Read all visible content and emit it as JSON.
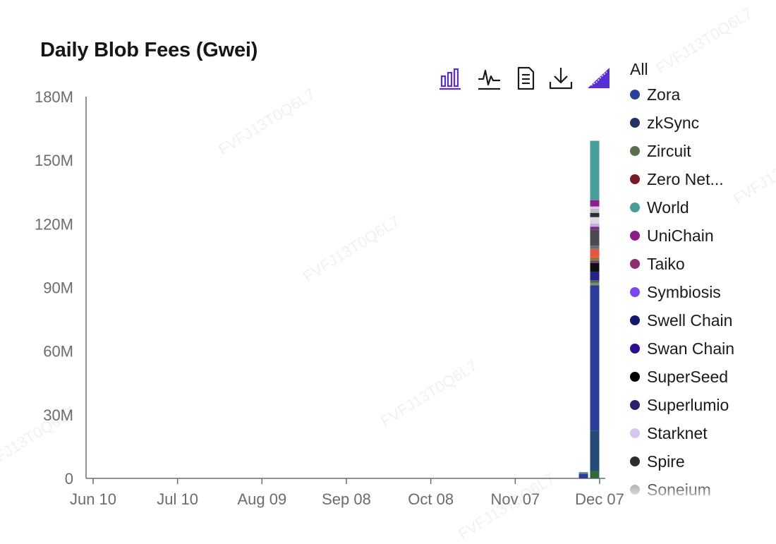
{
  "chart_data": {
    "type": "bar",
    "stacked": true,
    "title": "Daily Blob Fees (Gwei)",
    "ylim": [
      0,
      180000000
    ],
    "y_ticks": [
      "0",
      "30M",
      "60M",
      "90M",
      "120M",
      "150M",
      "180M"
    ],
    "x_range": [
      "Jun 10",
      "Dec 07"
    ],
    "x_ticks": [
      "Jun 10",
      "Jul 10",
      "Aug 09",
      "Sep 08",
      "Oct 08",
      "Nov 07",
      "Dec 07"
    ],
    "grid": false,
    "legend_position": "right",
    "bars": [
      {
        "date": "Dec 03",
        "segments": [
          {
            "value": 2000000,
            "color": "#2a3f9b"
          },
          {
            "value": 600000,
            "color": "#3e7f7a"
          },
          {
            "value": 400000,
            "color": "#8a8aa0"
          }
        ]
      },
      {
        "date": "Dec 07",
        "segments": [
          {
            "value": 3500000,
            "color": "#2f6b3a"
          },
          {
            "value": 19000000,
            "color": "#244b73"
          },
          {
            "value": 68500000,
            "color": "#2a3f9b"
          },
          {
            "value": 1200000,
            "color": "#8a8a6a"
          },
          {
            "value": 1300000,
            "color": "#4a6a52"
          },
          {
            "value": 4000000,
            "color": "#25238a"
          },
          {
            "value": 4000000,
            "color": "#0e0e14"
          },
          {
            "value": 1200000,
            "color": "#6a3a6a"
          },
          {
            "value": 1500000,
            "color": "#8a7a40"
          },
          {
            "value": 4000000,
            "color": "#e8553f"
          },
          {
            "value": 1500000,
            "color": "#6c6c75"
          },
          {
            "value": 7500000,
            "color": "#4a4a4f"
          },
          {
            "value": 1500000,
            "color": "#7a2a8a"
          },
          {
            "value": 1500000,
            "color": "#c9a8e0"
          },
          {
            "value": 3000000,
            "color": "#d9d9dd"
          },
          {
            "value": 2000000,
            "color": "#2b2d33"
          },
          {
            "value": 2000000,
            "color": "#bcbcc2"
          },
          {
            "value": 1000000,
            "color": "#d7c6f0"
          },
          {
            "value": 3000000,
            "color": "#8e1d8c"
          },
          {
            "value": 28000000,
            "color": "#4a9e9a"
          }
        ]
      }
    ]
  },
  "legend": {
    "all_label": "All",
    "items": [
      {
        "label": "Zora",
        "color": "#2a3f9b"
      },
      {
        "label": "zkSync",
        "color": "#233266"
      },
      {
        "label": "Zircuit",
        "color": "#5b6e4e"
      },
      {
        "label": "Zero Net...",
        "color": "#7a1a24"
      },
      {
        "label": "World",
        "color": "#4a9e9a"
      },
      {
        "label": "UniChain",
        "color": "#8e1d8c"
      },
      {
        "label": "Taiko",
        "color": "#8e2f6e"
      },
      {
        "label": "Symbiosis",
        "color": "#7b47f0"
      },
      {
        "label": "Swell Chain",
        "color": "#101a6e"
      },
      {
        "label": "Swan Chain",
        "color": "#2b0f8e"
      },
      {
        "label": "SuperSeed",
        "color": "#050505"
      },
      {
        "label": "Superlumio",
        "color": "#2e1f6e"
      },
      {
        "label": "Starknet",
        "color": "#d7c6f0"
      },
      {
        "label": "Spire",
        "color": "#2b2d33"
      },
      {
        "label": "Soneium",
        "color": "#9a9aa0"
      }
    ]
  },
  "toolbox": [
    {
      "icon": "bar-chart-icon",
      "active": true
    },
    {
      "icon": "line-chart-icon",
      "active": false
    },
    {
      "icon": "data-view-icon",
      "active": false
    },
    {
      "icon": "download-icon",
      "active": false
    },
    {
      "icon": "stack-area-icon",
      "active": true
    }
  ],
  "accent_color": "#5a2fd1",
  "watermark_text": "FVFJ13T0Q6L7"
}
